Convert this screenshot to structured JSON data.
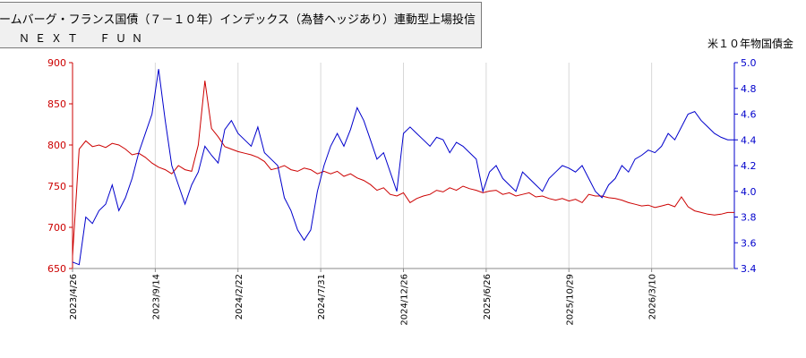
{
  "header": {
    "title": "ームバーグ・フランス国債（７－１０年）インデックス（為替ヘッジあり）連動型上場投信",
    "subtitle": "ＮＥＸＴ　ＦＵＮ",
    "right_series_label": "米１０年物国債金"
  },
  "chart_data": {
    "type": "line",
    "dual_axis": true,
    "x_tick_labels": [
      "2023/4/26",
      "2023/9/14",
      "2024/2/22",
      "2024/7/31",
      "2024/12/26",
      "2025/6/26",
      "2025/10/29",
      "2026/3/10"
    ],
    "y_left": {
      "ticks": [
        650,
        700,
        750,
        800,
        850,
        900
      ],
      "range": [
        650,
        900
      ],
      "color": "#cc0000"
    },
    "y_right": {
      "ticks": [
        3.4,
        3.6,
        3.8,
        4.0,
        4.2,
        4.4,
        4.6,
        4.8,
        5.0
      ],
      "tick_labels": [
        "3.4",
        "3.6",
        "3.8",
        "4.0",
        "4.2",
        "4.4",
        "4.6",
        "4.8",
        "5.0"
      ],
      "range": [
        3.4,
        5.0
      ],
      "color": "#0000cc"
    },
    "grid": {
      "vertical": true,
      "horizontal": false
    },
    "series": [
      {
        "axis": "left",
        "color": "#cc0000",
        "x": [
          0,
          2,
          4,
          6,
          8,
          10,
          12,
          14,
          16,
          18,
          20,
          22,
          24,
          26,
          28,
          30,
          32,
          34,
          36,
          38,
          40,
          42,
          44,
          46,
          48,
          50,
          52,
          54,
          56,
          58,
          60,
          62,
          64,
          66,
          68,
          70,
          72,
          74,
          76,
          78,
          80,
          82,
          84,
          86,
          88,
          90,
          92,
          94,
          96,
          98,
          100,
          102,
          104,
          106,
          108,
          110,
          112,
          114,
          116,
          118,
          120,
          122,
          124,
          126,
          128,
          130,
          132,
          134,
          136,
          138,
          140,
          142,
          144,
          146,
          148,
          150,
          152,
          154,
          156,
          158,
          160,
          162,
          164,
          166,
          168,
          170,
          172,
          174,
          176,
          178,
          180,
          182,
          184,
          186,
          188,
          190,
          192,
          194,
          196,
          198,
          200
        ],
        "values": [
          665,
          795,
          805,
          798,
          800,
          797,
          802,
          800,
          795,
          788,
          790,
          785,
          778,
          773,
          770,
          765,
          775,
          770,
          768,
          800,
          878,
          820,
          810,
          798,
          795,
          792,
          790,
          788,
          785,
          780,
          770,
          772,
          775,
          770,
          768,
          772,
          770,
          765,
          768,
          765,
          768,
          762,
          765,
          760,
          757,
          752,
          745,
          748,
          740,
          738,
          742,
          730,
          735,
          738,
          740,
          745,
          743,
          748,
          745,
          750,
          747,
          745,
          742,
          744,
          745,
          740,
          742,
          738,
          740,
          742,
          737,
          738,
          735,
          733,
          735,
          732,
          734,
          730,
          740,
          738,
          738,
          736,
          735,
          733,
          730,
          728,
          726,
          727,
          724,
          726,
          728,
          725,
          737,
          725,
          720,
          718,
          716,
          715,
          716,
          718,
          718
        ]
      },
      {
        "axis": "right",
        "color": "#0000cc",
        "x": [
          0,
          2,
          4,
          6,
          8,
          10,
          12,
          14,
          16,
          18,
          20,
          22,
          24,
          26,
          28,
          30,
          32,
          34,
          36,
          38,
          40,
          42,
          44,
          46,
          48,
          50,
          52,
          54,
          56,
          58,
          60,
          62,
          64,
          66,
          68,
          70,
          72,
          74,
          76,
          78,
          80,
          82,
          84,
          86,
          88,
          90,
          92,
          94,
          96,
          98,
          100,
          102,
          104,
          106,
          108,
          110,
          112,
          114,
          116,
          118,
          120,
          122,
          124,
          126,
          128,
          130,
          132,
          134,
          136,
          138,
          140,
          142,
          144,
          146,
          148,
          150,
          152,
          154,
          156,
          158,
          160,
          162,
          164,
          166,
          168,
          170,
          172,
          174,
          176,
          178,
          180,
          182,
          184,
          186,
          188,
          190,
          192,
          194,
          196,
          198,
          200
        ],
        "values": [
          3.45,
          3.43,
          3.8,
          3.75,
          3.85,
          3.9,
          4.05,
          3.85,
          3.95,
          4.1,
          4.3,
          4.45,
          4.6,
          4.95,
          4.55,
          4.2,
          4.05,
          3.9,
          4.05,
          4.15,
          4.35,
          4.28,
          4.22,
          4.48,
          4.55,
          4.45,
          4.4,
          4.35,
          4.5,
          4.3,
          4.25,
          4.2,
          3.95,
          3.85,
          3.7,
          3.62,
          3.7,
          4.0,
          4.2,
          4.35,
          4.45,
          4.35,
          4.48,
          4.65,
          4.55,
          4.4,
          4.25,
          4.3,
          4.15,
          4.0,
          4.45,
          4.5,
          4.45,
          4.4,
          4.35,
          4.42,
          4.4,
          4.3,
          4.38,
          4.35,
          4.3,
          4.25,
          4.0,
          4.15,
          4.2,
          4.1,
          4.05,
          4.0,
          4.15,
          4.1,
          4.05,
          4.0,
          4.1,
          4.15,
          4.2,
          4.18,
          4.15,
          4.2,
          4.1,
          4.0,
          3.95,
          4.05,
          4.1,
          4.2,
          4.15,
          4.25,
          4.28,
          4.32,
          4.3,
          4.35,
          4.45,
          4.4,
          4.5,
          4.6,
          4.62,
          4.55,
          4.5,
          4.45,
          4.42,
          4.4,
          4.4
        ]
      }
    ]
  }
}
